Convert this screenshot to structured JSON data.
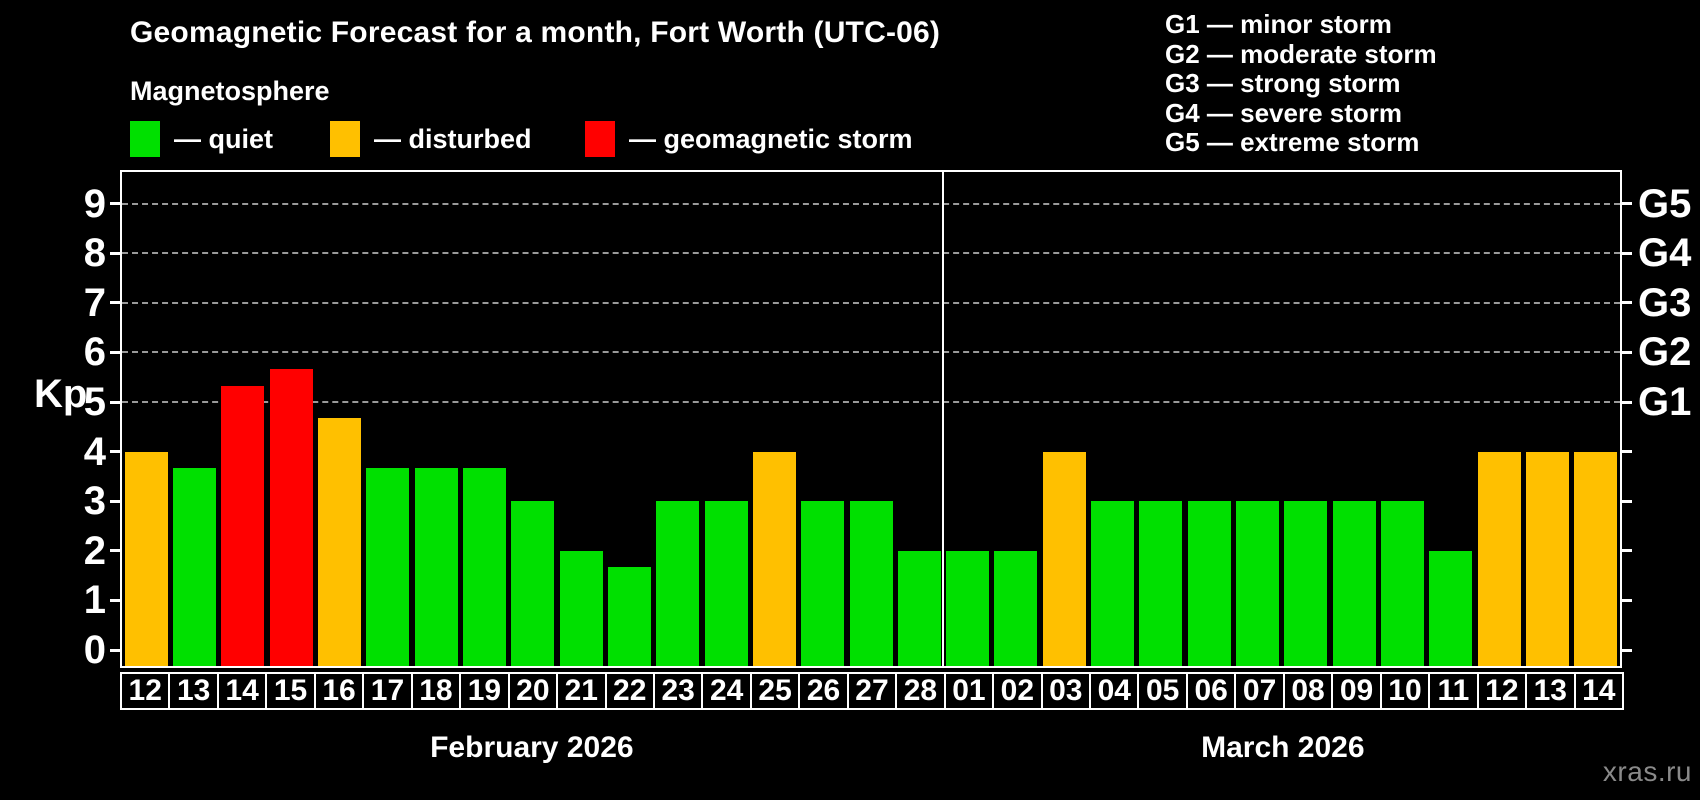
{
  "header": {
    "title": "Geomagnetic Forecast for a month, Fort Worth (UTC-06)",
    "subtitle": "Magnetosphere",
    "legend": [
      {
        "status": "quiet",
        "label": "— quiet"
      },
      {
        "status": "disturbed",
        "label": "— disturbed"
      },
      {
        "status": "storm",
        "label": "— geomagnetic storm"
      }
    ],
    "g_legend": [
      "G1 — minor storm",
      "G2 — moderate storm",
      "G3 — strong storm",
      "G4 — severe storm",
      "G5 — extreme storm"
    ]
  },
  "chart_data": {
    "type": "bar",
    "ylabel": "Kp",
    "ylim": [
      0,
      9
    ],
    "yticks": [
      0,
      1,
      2,
      3,
      4,
      5,
      6,
      7,
      8,
      9
    ],
    "gridlines_at": [
      5,
      6,
      7,
      8,
      9
    ],
    "grid": "dashed horizontal at storm levels only",
    "right_axis_labels": [
      {
        "label": "G1",
        "kp": 5
      },
      {
        "label": "G2",
        "kp": 6
      },
      {
        "label": "G3",
        "kp": 7
      },
      {
        "label": "G4",
        "kp": 8
      },
      {
        "label": "G5",
        "kp": 9
      }
    ],
    "months": [
      {
        "label": "February 2026",
        "days": 17
      },
      {
        "label": "March 2026",
        "days": 14
      }
    ],
    "categories": [
      "12",
      "13",
      "14",
      "15",
      "16",
      "17",
      "18",
      "19",
      "20",
      "21",
      "22",
      "23",
      "24",
      "25",
      "26",
      "27",
      "28",
      "01",
      "02",
      "03",
      "04",
      "05",
      "06",
      "07",
      "08",
      "09",
      "10",
      "11",
      "12",
      "13",
      "14"
    ],
    "values": [
      4,
      3.67,
      5.33,
      5.67,
      4.67,
      3.67,
      3.67,
      3.67,
      3,
      2,
      1.67,
      3,
      3,
      4,
      3,
      3,
      2,
      2,
      2,
      4,
      3,
      3,
      3,
      3,
      3,
      3,
      3,
      2,
      4,
      4,
      4
    ],
    "statuses": [
      "disturbed",
      "quiet",
      "storm",
      "storm",
      "disturbed",
      "quiet",
      "quiet",
      "quiet",
      "quiet",
      "quiet",
      "quiet",
      "quiet",
      "quiet",
      "disturbed",
      "quiet",
      "quiet",
      "quiet",
      "quiet",
      "quiet",
      "disturbed",
      "quiet",
      "quiet",
      "quiet",
      "quiet",
      "quiet",
      "quiet",
      "quiet",
      "quiet",
      "disturbed",
      "disturbed",
      "disturbed"
    ],
    "colors": {
      "quiet": "#00e000",
      "disturbed": "#ffc000",
      "storm": "#ff0000",
      "background": "#000000",
      "axis": "#ffffff",
      "gridline": "#9a9a9a"
    }
  },
  "watermark": "xras.ru"
}
